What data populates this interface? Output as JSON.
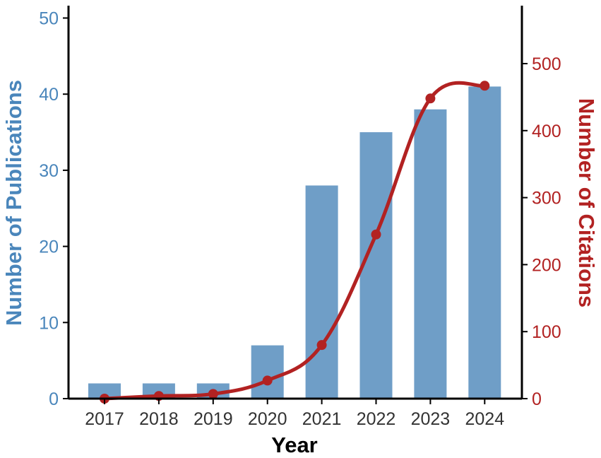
{
  "chart_data": {
    "type": "bar+line",
    "categories": [
      "2017",
      "2018",
      "2019",
      "2020",
      "2021",
      "2022",
      "2023",
      "2024"
    ],
    "series": [
      {
        "type": "bar",
        "axis": "left",
        "values": [
          2,
          2,
          2,
          7,
          28,
          35,
          38,
          41
        ],
        "color": "#6f9ec7"
      },
      {
        "type": "line",
        "axis": "right",
        "values": [
          0,
          4,
          7,
          27,
          80,
          245,
          448,
          467
        ],
        "color": "#b22222"
      }
    ],
    "xlabel": "Year",
    "ylabel_left": "Number of Publications",
    "ylabel_right": "Number of Citations",
    "ylim_left": [
      0,
      50
    ],
    "ylim_right": [
      0,
      580
    ],
    "yticks_left": [
      0,
      10,
      20,
      30,
      40,
      50
    ],
    "yticks_right": [
      0,
      100,
      200,
      300,
      400,
      500
    ],
    "grid": false,
    "colors": {
      "left_axis": "#4a86bb",
      "right_axis": "#b22222",
      "axis_line": "#000000",
      "tick_label": "#333333"
    }
  }
}
